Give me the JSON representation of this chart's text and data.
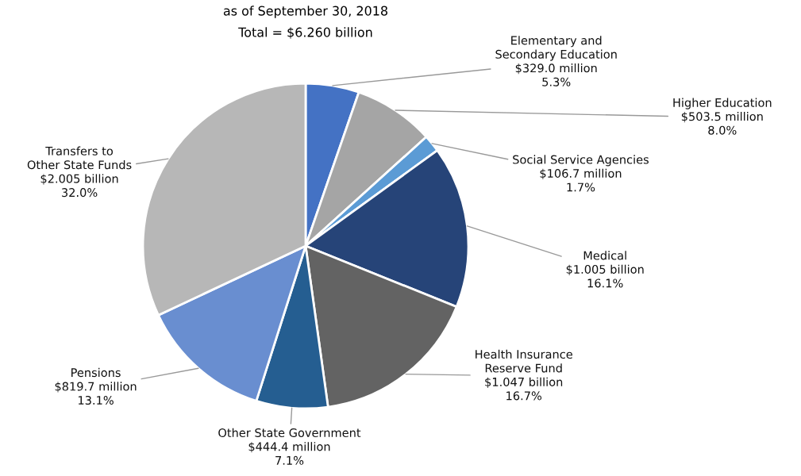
{
  "chart_data": {
    "type": "pie",
    "title": "as of September 30, 2018",
    "subtitle": "Total = $6.260 billion",
    "categories": [
      "Elementary and\nSecondary Education",
      "Higher Education",
      "Social Service Agencies",
      "Medical",
      "Health Insurance\nReserve Fund",
      "Other State Government",
      "Pensions",
      "Transfers to\nOther State Funds"
    ],
    "values": [
      5.3,
      8.0,
      1.7,
      16.1,
      16.7,
      7.1,
      13.1,
      32.0
    ],
    "value_labels": [
      "$329.0 million\n5.3%",
      "$503.5 million\n8.0%",
      "$106.7 million\n1.7%",
      "$1.005 billion\n16.1%",
      "$1.047 billion\n16.7%",
      "$444.4 million\n7.1%",
      "$819.7 million\n13.1%",
      "$2.005 billion\n32.0%"
    ],
    "colors": [
      "#4472c4",
      "#a5a5a5",
      "#5b9bd5",
      "#264478",
      "#636363",
      "#255e91",
      "#698ed0",
      "#b7b7b7"
    ]
  }
}
